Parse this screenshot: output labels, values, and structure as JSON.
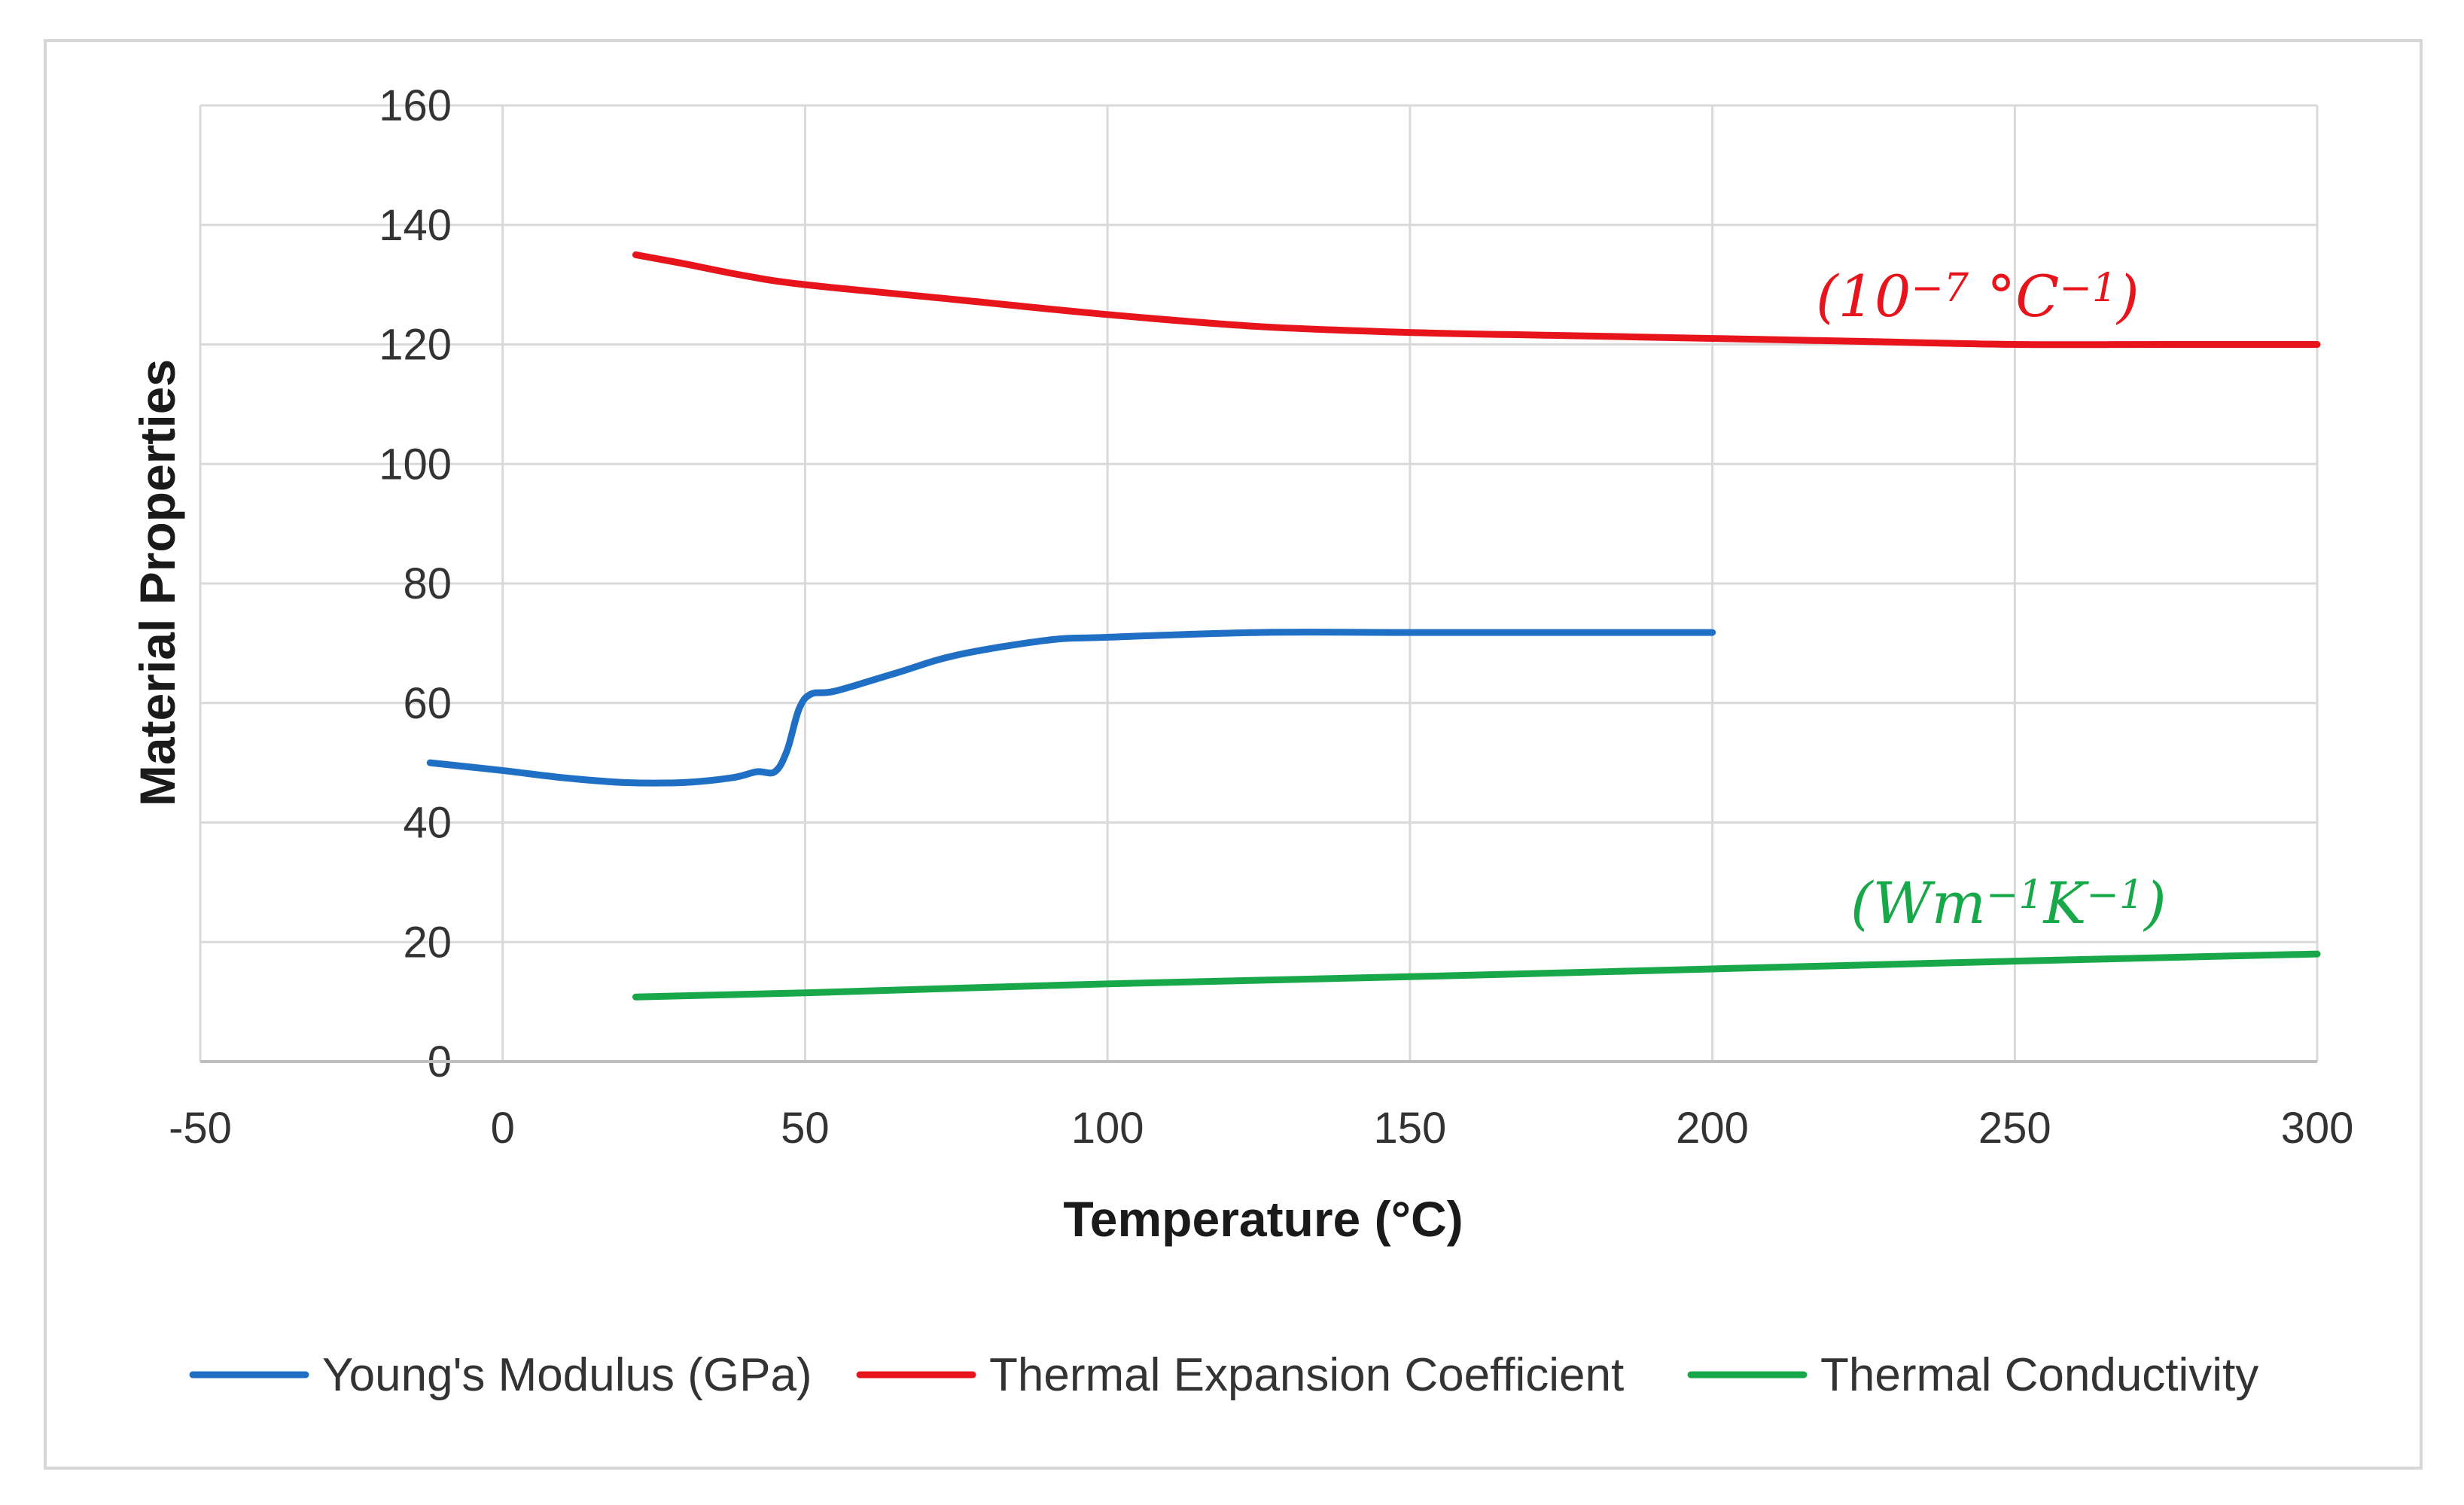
{
  "chart_data": {
    "type": "line",
    "title": "",
    "xlabel": "Temperature (°C)",
    "ylabel": "Material Properties",
    "xlim": [
      -50,
      300
    ],
    "ylim": [
      0,
      160
    ],
    "xticks": [
      -50,
      0,
      50,
      100,
      150,
      200,
      250,
      300
    ],
    "yticks": [
      0,
      20,
      40,
      60,
      80,
      100,
      120,
      140,
      160
    ],
    "grid": true,
    "legend_position": "bottom",
    "series": [
      {
        "name": "Young's Modulus (GPa)",
        "color": "#1f6fc5",
        "x": [
          -12,
          0,
          10,
          20,
          30,
          38,
          42,
          45,
          47,
          49,
          51,
          55,
          65,
          75,
          90,
          100,
          125,
          150,
          175,
          200
        ],
        "y": [
          50,
          48.7,
          47.5,
          46.7,
          46.7,
          47.5,
          48.5,
          48.5,
          52,
          59,
          61.5,
          62,
          65,
          68,
          70.5,
          71,
          71.8,
          71.8,
          71.8,
          71.8
        ]
      },
      {
        "name": "Thermal Expansion Coefficient",
        "color": "#e8141b",
        "x": [
          22,
          30,
          40,
          50,
          75,
          100,
          125,
          150,
          175,
          200,
          225,
          250,
          275,
          300
        ],
        "y": [
          135,
          133.5,
          131.5,
          130,
          127.5,
          125,
          123,
          122,
          121.5,
          121,
          120.5,
          120,
          120,
          120
        ]
      },
      {
        "name": "Thermal Conductivity",
        "color": "#18a84a",
        "x": [
          22,
          50,
          100,
          150,
          200,
          250,
          300
        ],
        "y": [
          10.8,
          11.5,
          13,
          14.2,
          15.5,
          16.8,
          18
        ]
      }
    ],
    "annotations": [
      {
        "series": "Thermal Expansion Coefficient",
        "text_open": "(10",
        "sup1": "−7",
        "mid": " °C",
        "sup2": "−1",
        "text_close": ")",
        "color": "#e8141b"
      },
      {
        "series": "Thermal Conductivity",
        "text_open": "(Wm",
        "sup1": "−1",
        "mid": "K",
        "sup2": "−1",
        "text_close": ")",
        "color": "#18a84a"
      }
    ]
  }
}
